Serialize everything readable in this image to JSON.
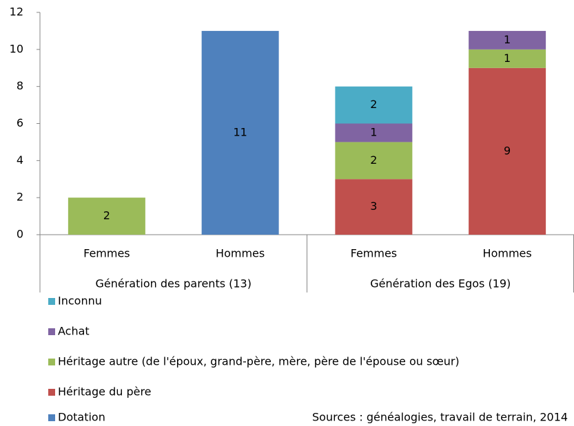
{
  "chart_data": {
    "type": "stacked_bar",
    "categories": [
      "Femmes",
      "Hommes",
      "Femmes",
      "Hommes"
    ],
    "groups": [
      "Génération des parents (13)",
      "Génération des Egos (19)"
    ],
    "series": [
      {
        "name": "Dotation",
        "color": "#4f81bd",
        "values": [
          null,
          11,
          null,
          null
        ]
      },
      {
        "name": "Héritage du père",
        "color": "#c0504d",
        "values": [
          null,
          null,
          3,
          9
        ]
      },
      {
        "name": "Héritage autre (de l'époux, grand-père, mère, père de l'épouse ou sœur)",
        "color": "#9bbb59",
        "values": [
          2,
          null,
          2,
          1
        ]
      },
      {
        "name": "Achat",
        "color": "#8064a2",
        "values": [
          null,
          null,
          1,
          1
        ]
      },
      {
        "name": "Inconnu",
        "color": "#4bacc6",
        "values": [
          null,
          null,
          2,
          null
        ]
      }
    ],
    "ylim": [
      0,
      12
    ],
    "yticks": [
      0,
      2,
      4,
      6,
      8,
      10,
      12
    ],
    "grid": false,
    "legend": "bottom-left",
    "source": "Sources : généalogies, travail de terrain, 2014"
  }
}
